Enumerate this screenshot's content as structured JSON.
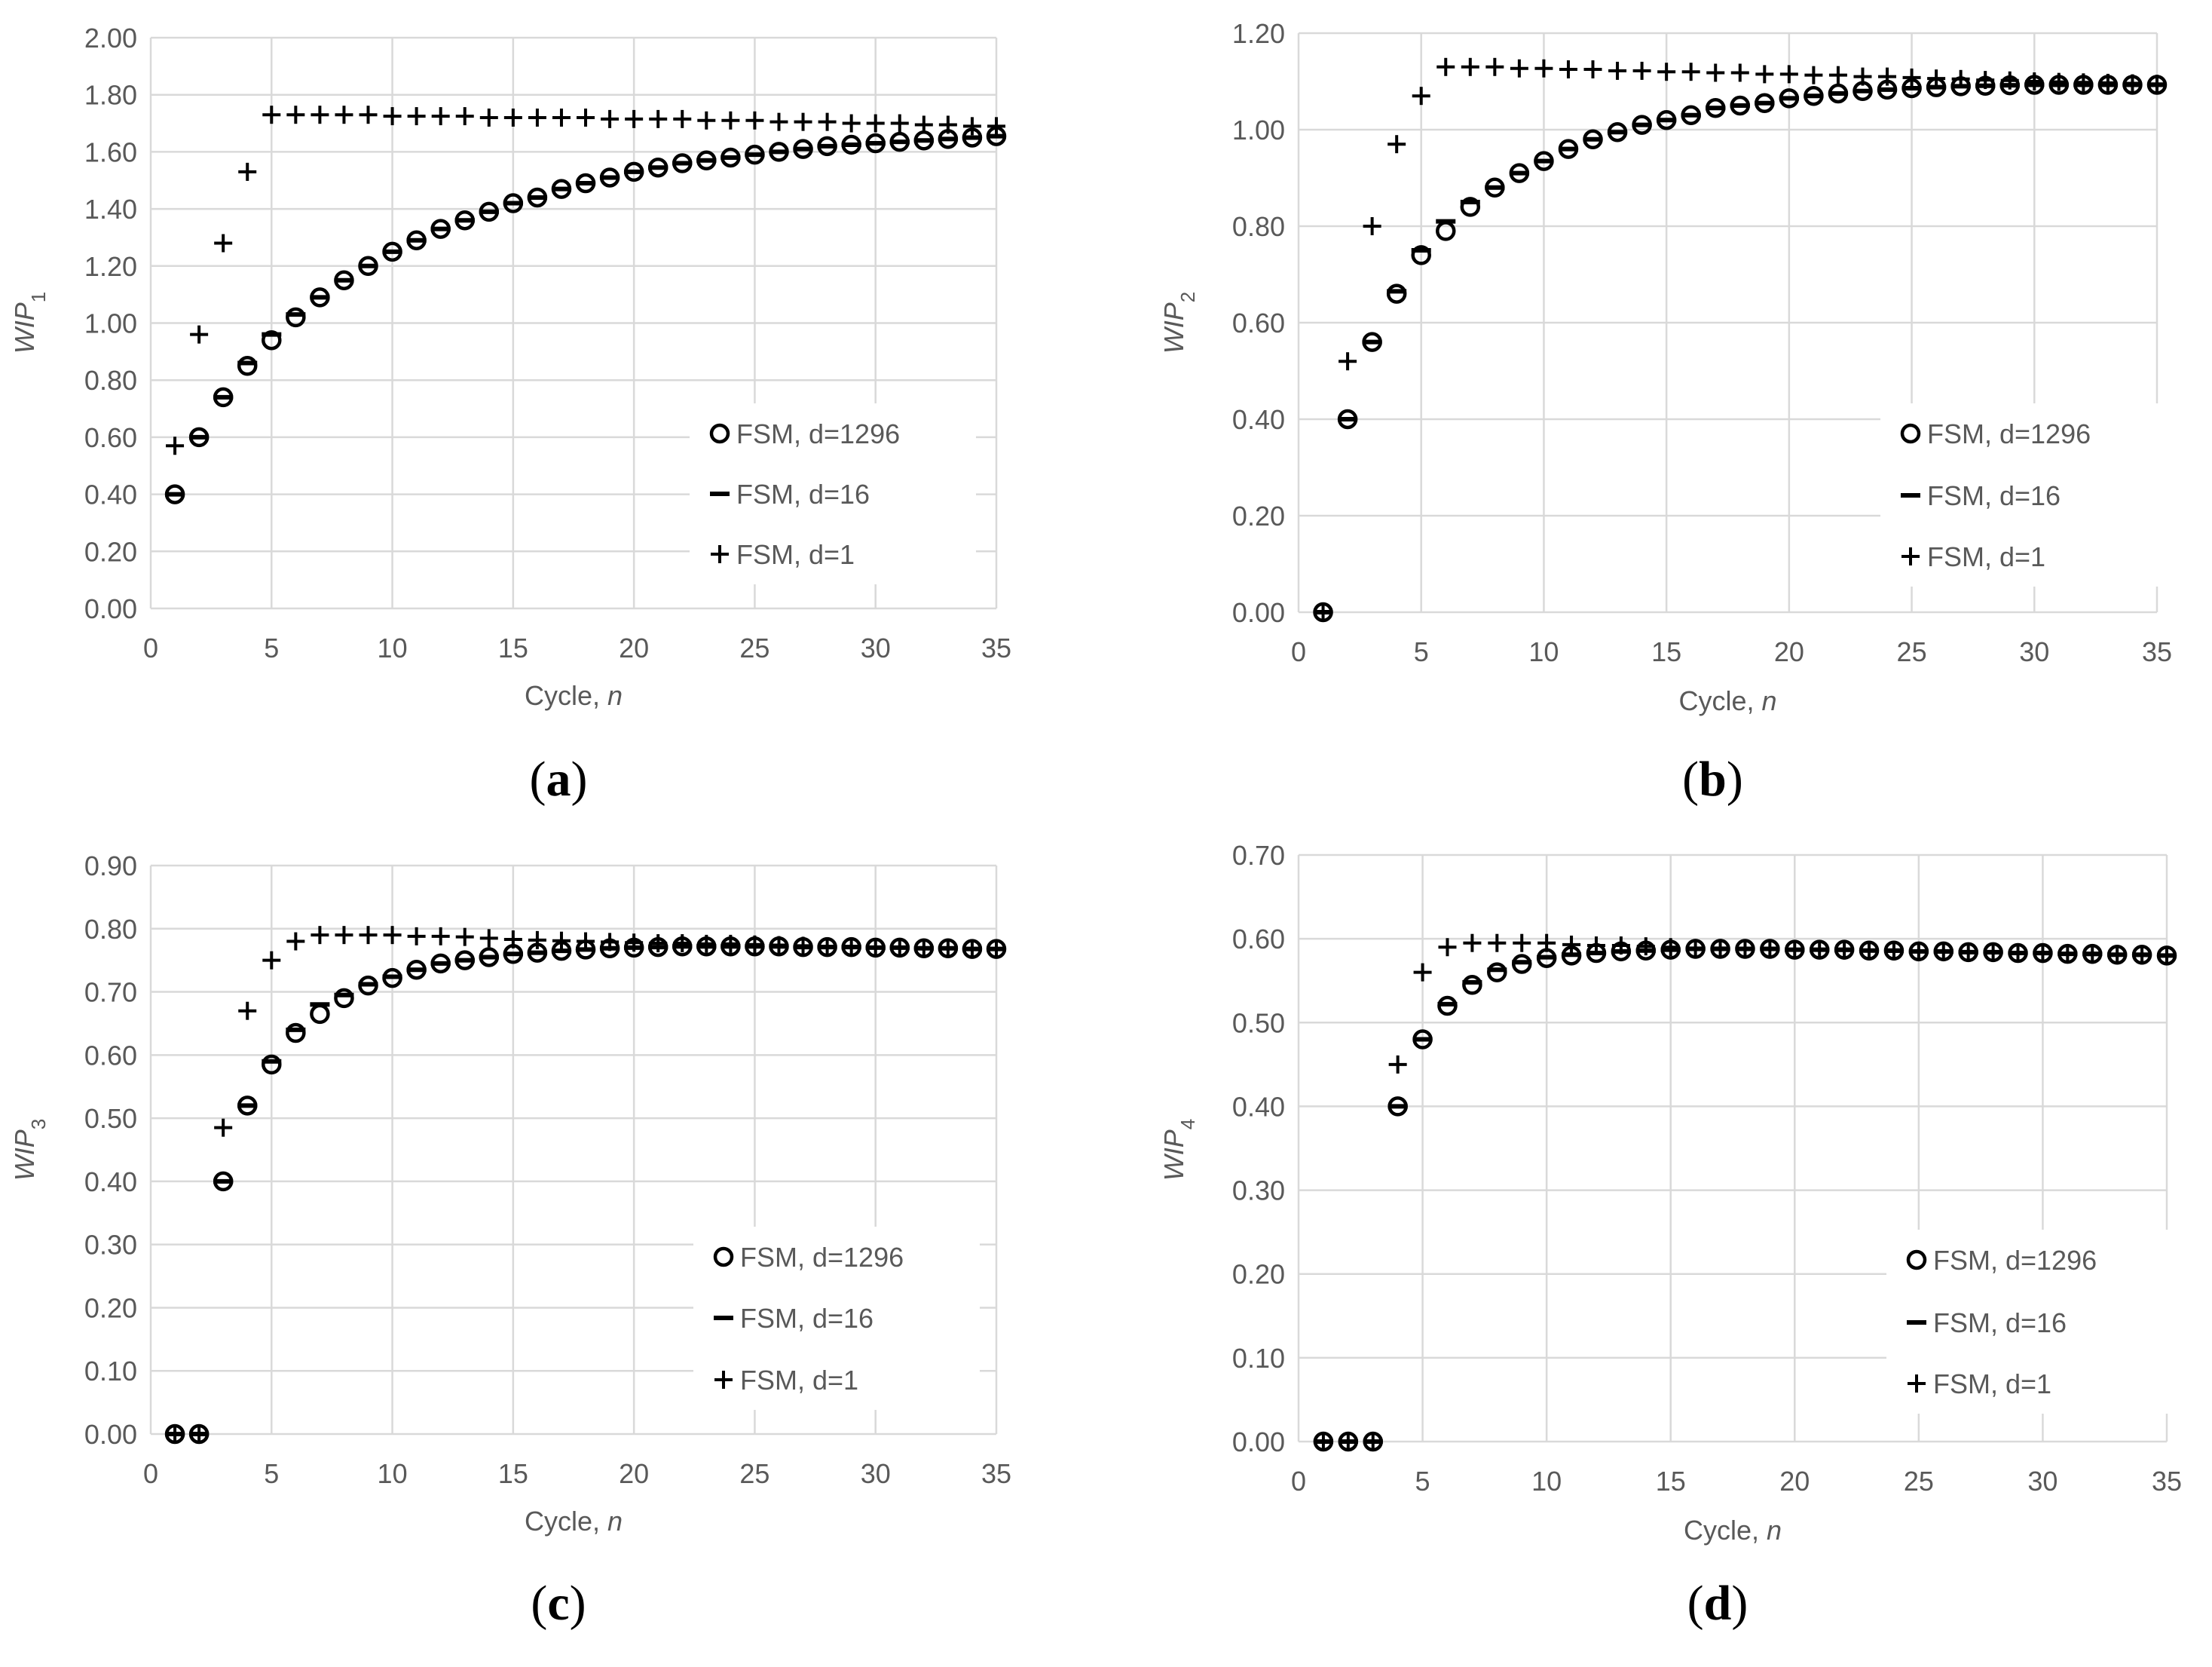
{
  "colors": {
    "grid": "#d9d9d9",
    "text": "#595959",
    "marker": "#000000",
    "background": "#ffffff"
  },
  "chart_data": [
    {
      "type": "scatter",
      "panel": "a",
      "panel_label": "a",
      "xlabel": "Cycle,",
      "xlabel_var": "n",
      "ylabel_base": "WIP",
      "ylabel_sub": "1",
      "xlim": [
        0,
        35
      ],
      "ylim": [
        0,
        2.0
      ],
      "xticks": [
        0,
        5,
        10,
        15,
        20,
        25,
        30,
        35
      ],
      "yticks": [
        0,
        0.2,
        0.4,
        0.6,
        0.8,
        1.0,
        1.2,
        1.4,
        1.6,
        1.8,
        2.0
      ],
      "ytick_labels": [
        "0.00",
        "0.20",
        "0.40",
        "0.60",
        "0.80",
        "1.00",
        "1.20",
        "1.40",
        "1.60",
        "1.80",
        "2.00"
      ],
      "x": [
        1,
        2,
        3,
        4,
        5,
        6,
        7,
        8,
        9,
        10,
        11,
        12,
        13,
        14,
        15,
        16,
        17,
        18,
        19,
        20,
        21,
        22,
        23,
        24,
        25,
        26,
        27,
        28,
        29,
        30,
        31,
        32,
        33,
        34,
        35
      ],
      "series": [
        {
          "name": "FSM, d=1296",
          "marker": "circle",
          "values": [
            0.4,
            0.6,
            0.74,
            0.85,
            0.94,
            1.02,
            1.09,
            1.15,
            1.2,
            1.25,
            1.29,
            1.33,
            1.36,
            1.39,
            1.42,
            1.44,
            1.47,
            1.49,
            1.51,
            1.53,
            1.545,
            1.56,
            1.57,
            1.58,
            1.59,
            1.6,
            1.61,
            1.62,
            1.625,
            1.63,
            1.635,
            1.64,
            1.645,
            1.65,
            1.655
          ]
        },
        {
          "name": "FSM, d=16",
          "marker": "dash",
          "values": [
            0.4,
            0.6,
            0.74,
            0.86,
            0.96,
            1.03,
            1.09,
            1.15,
            1.2,
            1.25,
            1.29,
            1.33,
            1.36,
            1.39,
            1.42,
            1.44,
            1.47,
            1.49,
            1.51,
            1.53,
            1.545,
            1.56,
            1.57,
            1.58,
            1.59,
            1.6,
            1.61,
            1.62,
            1.625,
            1.63,
            1.635,
            1.64,
            1.645,
            1.65,
            1.655
          ]
        },
        {
          "name": "FSM, d=1",
          "marker": "plus",
          "values": [
            0.57,
            0.96,
            1.28,
            1.53,
            1.73,
            1.73,
            1.73,
            1.73,
            1.73,
            1.725,
            1.725,
            1.725,
            1.725,
            1.72,
            1.72,
            1.72,
            1.72,
            1.72,
            1.715,
            1.715,
            1.715,
            1.715,
            1.71,
            1.71,
            1.71,
            1.705,
            1.705,
            1.705,
            1.7,
            1.7,
            1.7,
            1.695,
            1.695,
            1.69,
            1.69
          ]
        }
      ]
    },
    {
      "type": "scatter",
      "panel": "b",
      "panel_label": "b",
      "xlabel": "Cycle,",
      "xlabel_var": "n",
      "ylabel_base": "WIP",
      "ylabel_sub": "2",
      "xlim": [
        0,
        35
      ],
      "ylim": [
        0,
        1.2
      ],
      "xticks": [
        0,
        5,
        10,
        15,
        20,
        25,
        30,
        35
      ],
      "yticks": [
        0,
        0.2,
        0.4,
        0.6,
        0.8,
        1.0,
        1.2
      ],
      "ytick_labels": [
        "0.00",
        "0.20",
        "0.40",
        "0.60",
        "0.80",
        "1.00",
        "1.20"
      ],
      "x": [
        1,
        2,
        3,
        4,
        5,
        6,
        7,
        8,
        9,
        10,
        11,
        12,
        13,
        14,
        15,
        16,
        17,
        18,
        19,
        20,
        21,
        22,
        23,
        24,
        25,
        26,
        27,
        28,
        29,
        30,
        31,
        32,
        33,
        34,
        35
      ],
      "series": [
        {
          "name": "FSM, d=1296",
          "marker": "circle",
          "values": [
            0.0,
            0.4,
            0.56,
            0.66,
            0.74,
            0.79,
            0.84,
            0.88,
            0.91,
            0.935,
            0.96,
            0.98,
            0.995,
            1.01,
            1.02,
            1.03,
            1.045,
            1.05,
            1.055,
            1.065,
            1.07,
            1.075,
            1.08,
            1.083,
            1.086,
            1.088,
            1.09,
            1.091,
            1.092,
            1.093,
            1.093,
            1.093,
            1.093,
            1.093,
            1.093
          ]
        },
        {
          "name": "FSM, d=16",
          "marker": "dash",
          "values": [
            0.0,
            0.4,
            0.56,
            0.665,
            0.75,
            0.81,
            0.85,
            0.88,
            0.91,
            0.935,
            0.96,
            0.98,
            0.995,
            1.01,
            1.02,
            1.03,
            1.045,
            1.05,
            1.055,
            1.065,
            1.07,
            1.075,
            1.08,
            1.083,
            1.086,
            1.088,
            1.09,
            1.091,
            1.092,
            1.093,
            1.093,
            1.093,
            1.093,
            1.093,
            1.093
          ]
        },
        {
          "name": "FSM, d=1",
          "marker": "plus",
          "values": [
            0.0,
            0.52,
            0.8,
            0.97,
            1.07,
            1.13,
            1.13,
            1.13,
            1.127,
            1.127,
            1.125,
            1.125,
            1.122,
            1.122,
            1.12,
            1.12,
            1.118,
            1.118,
            1.115,
            1.115,
            1.113,
            1.113,
            1.11,
            1.11,
            1.108,
            1.106,
            1.105,
            1.103,
            1.102,
            1.1,
            1.099,
            1.098,
            1.097,
            1.096,
            1.095
          ]
        }
      ]
    },
    {
      "type": "scatter",
      "panel": "c",
      "panel_label": "c",
      "xlabel": "Cycle,",
      "xlabel_var": "n",
      "ylabel_base": "WIP",
      "ylabel_sub": "3",
      "xlim": [
        0,
        35
      ],
      "ylim": [
        0,
        0.9
      ],
      "xticks": [
        0,
        5,
        10,
        15,
        20,
        25,
        30,
        35
      ],
      "yticks": [
        0,
        0.1,
        0.2,
        0.3,
        0.4,
        0.5,
        0.6,
        0.7,
        0.8,
        0.9
      ],
      "ytick_labels": [
        "0.00",
        "0.10",
        "0.20",
        "0.30",
        "0.40",
        "0.50",
        "0.60",
        "0.70",
        "0.80",
        "0.90"
      ],
      "x": [
        1,
        2,
        3,
        4,
        5,
        6,
        7,
        8,
        9,
        10,
        11,
        12,
        13,
        14,
        15,
        16,
        17,
        18,
        19,
        20,
        21,
        22,
        23,
        24,
        25,
        26,
        27,
        28,
        29,
        30,
        31,
        32,
        33,
        34,
        35
      ],
      "series": [
        {
          "name": "FSM, d=1296",
          "marker": "circle",
          "values": [
            0.0,
            0.0,
            0.4,
            0.52,
            0.585,
            0.635,
            0.665,
            0.69,
            0.71,
            0.722,
            0.735,
            0.745,
            0.75,
            0.755,
            0.76,
            0.762,
            0.765,
            0.767,
            0.769,
            0.77,
            0.771,
            0.772,
            0.772,
            0.772,
            0.772,
            0.772,
            0.771,
            0.771,
            0.771,
            0.77,
            0.77,
            0.769,
            0.769,
            0.768,
            0.768
          ]
        },
        {
          "name": "FSM, d=16",
          "marker": "dash",
          "values": [
            0.0,
            0.0,
            0.4,
            0.52,
            0.59,
            0.64,
            0.68,
            0.695,
            0.712,
            0.724,
            0.735,
            0.745,
            0.75,
            0.755,
            0.76,
            0.762,
            0.765,
            0.767,
            0.769,
            0.77,
            0.771,
            0.772,
            0.772,
            0.772,
            0.772,
            0.772,
            0.771,
            0.771,
            0.771,
            0.77,
            0.77,
            0.769,
            0.769,
            0.768,
            0.768
          ]
        },
        {
          "name": "FSM, d=1",
          "marker": "plus",
          "values": [
            0.0,
            0.0,
            0.485,
            0.67,
            0.75,
            0.78,
            0.79,
            0.79,
            0.79,
            0.79,
            0.788,
            0.788,
            0.787,
            0.785,
            0.783,
            0.782,
            0.781,
            0.78,
            0.779,
            0.778,
            0.777,
            0.777,
            0.776,
            0.776,
            0.775,
            0.774,
            0.773,
            0.772,
            0.772,
            0.771,
            0.77,
            0.77,
            0.769,
            0.769,
            0.768
          ]
        }
      ]
    },
    {
      "type": "scatter",
      "panel": "d",
      "panel_label": "d",
      "xlabel": "Cycle,",
      "xlabel_var": "n",
      "ylabel_base": "WIP",
      "ylabel_sub": "4",
      "xlim": [
        0,
        35
      ],
      "ylim": [
        0,
        0.7
      ],
      "xticks": [
        0,
        5,
        10,
        15,
        20,
        25,
        30,
        35
      ],
      "yticks": [
        0,
        0.1,
        0.2,
        0.3,
        0.4,
        0.5,
        0.6,
        0.7
      ],
      "ytick_labels": [
        "0.00",
        "0.10",
        "0.20",
        "0.30",
        "0.40",
        "0.50",
        "0.60",
        "0.70"
      ],
      "x": [
        1,
        2,
        3,
        4,
        5,
        6,
        7,
        8,
        9,
        10,
        11,
        12,
        13,
        14,
        15,
        16,
        17,
        18,
        19,
        20,
        21,
        22,
        23,
        24,
        25,
        26,
        27,
        28,
        29,
        30,
        31,
        32,
        33,
        34,
        35
      ],
      "series": [
        {
          "name": "FSM, d=1296",
          "marker": "circle",
          "values": [
            0.0,
            0.0,
            0.0,
            0.4,
            0.48,
            0.52,
            0.545,
            0.56,
            0.57,
            0.577,
            0.58,
            0.583,
            0.585,
            0.586,
            0.587,
            0.588,
            0.588,
            0.588,
            0.588,
            0.587,
            0.587,
            0.587,
            0.586,
            0.586,
            0.585,
            0.585,
            0.584,
            0.584,
            0.583,
            0.583,
            0.582,
            0.582,
            0.581,
            0.581,
            0.58
          ]
        },
        {
          "name": "FSM, d=16",
          "marker": "dash",
          "values": [
            0.0,
            0.0,
            0.0,
            0.4,
            0.48,
            0.522,
            0.548,
            0.563,
            0.572,
            0.578,
            0.581,
            0.583,
            0.585,
            0.586,
            0.587,
            0.588,
            0.588,
            0.588,
            0.588,
            0.587,
            0.587,
            0.587,
            0.586,
            0.586,
            0.585,
            0.585,
            0.584,
            0.584,
            0.583,
            0.583,
            0.582,
            0.582,
            0.581,
            0.581,
            0.58
          ]
        },
        {
          "name": "FSM, d=1",
          "marker": "plus",
          "values": [
            0.0,
            0.0,
            0.0,
            0.45,
            0.56,
            0.59,
            0.595,
            0.595,
            0.595,
            0.595,
            0.593,
            0.592,
            0.592,
            0.591,
            0.59,
            0.589,
            0.589,
            0.588,
            0.588,
            0.587,
            0.587,
            0.586,
            0.586,
            0.585,
            0.585,
            0.584,
            0.584,
            0.583,
            0.583,
            0.582,
            0.582,
            0.581,
            0.581,
            0.58,
            0.58
          ]
        }
      ]
    }
  ]
}
